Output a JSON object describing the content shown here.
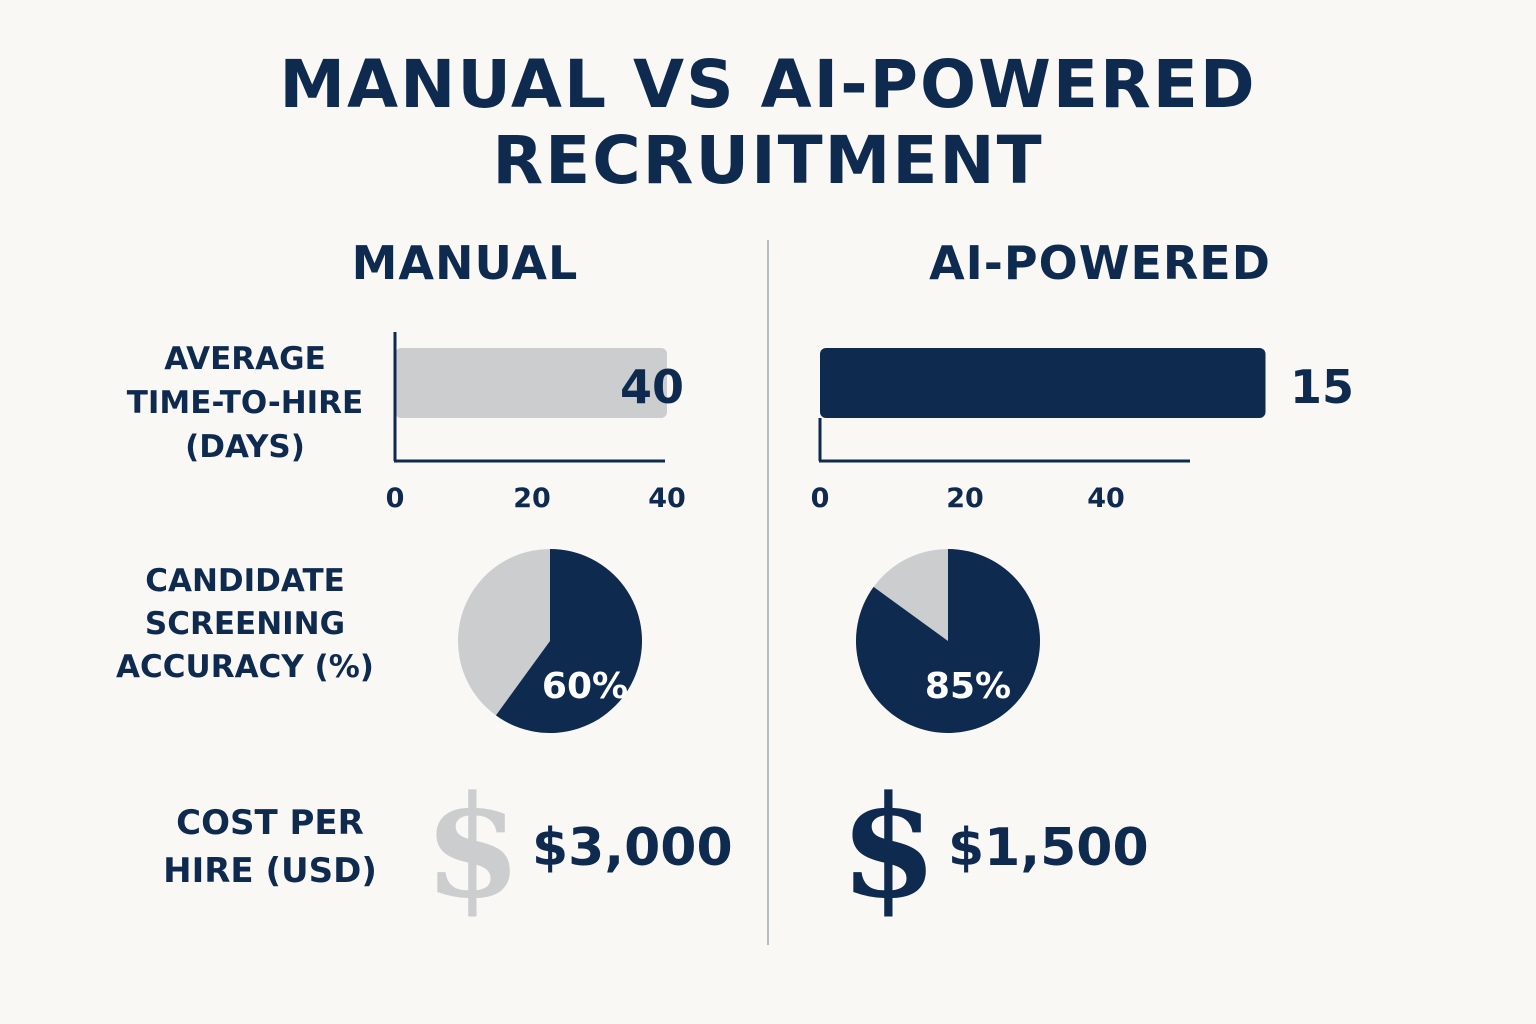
{
  "title_line1": "MANUAL VS AI-POWERED",
  "title_line2": "RECRUITMENT",
  "colors": {
    "manual": "#cbcdcf",
    "ai": "#0f2a4f",
    "text": "#0f2a4f",
    "background": "#faf8f4"
  },
  "columns": {
    "manual": "MANUAL",
    "ai": "AI-POWERED"
  },
  "rows": {
    "time_to_hire": {
      "label_lines": [
        "AVERAGE",
        "TIME-TO-HIRE",
        "(DAYS)"
      ]
    },
    "screening": {
      "label_lines": [
        "CANDIDATE",
        "SCREENING",
        "ACCURACY (%)"
      ]
    },
    "cost": {
      "label_lines": [
        "COST PER",
        "HIRE (USD)"
      ]
    }
  },
  "chart_data": [
    {
      "type": "bar",
      "title": "AVERAGE TIME-TO-HIRE (DAYS)",
      "orientation": "horizontal",
      "series": [
        {
          "name": "MANUAL",
          "value": 40,
          "value_label": "40",
          "color": "#cbcdcf"
        },
        {
          "name": "AI-POWERED",
          "value": 15,
          "value_label": "15",
          "color": "#0f2a4f"
        }
      ],
      "x_ticks": [
        "0",
        "20",
        "40"
      ]
    },
    {
      "type": "pie",
      "title": "CANDIDATE SCREENING ACCURACY (%)",
      "series": [
        {
          "name": "MANUAL",
          "value": 60,
          "value_label": "60%",
          "fill_color": "#0f2a4f",
          "rest_color": "#cbcdcf"
        },
        {
          "name": "AI-POWERED",
          "value": 85,
          "value_label": "85%",
          "fill_color": "#0f2a4f",
          "rest_color": "#cbcdcf"
        }
      ]
    },
    {
      "type": "table",
      "title": "COST PER HIRE (USD)",
      "series": [
        {
          "name": "MANUAL",
          "value": 3000,
          "value_label": "$3,000",
          "icon": "dollar-sign-icon",
          "icon_glyph": "$",
          "icon_color": "#cbcdcf"
        },
        {
          "name": "AI-POWERED",
          "value": 1500,
          "value_label": "$1,500",
          "icon": "dollar-sign-icon",
          "icon_glyph": "$",
          "icon_color": "#0f2a4f"
        }
      ]
    }
  ]
}
